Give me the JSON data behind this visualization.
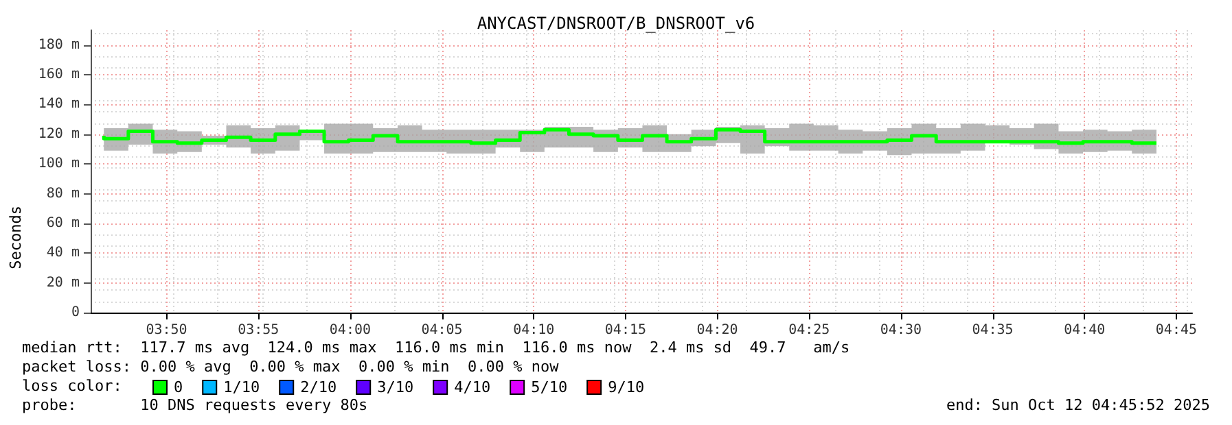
{
  "chart_data": {
    "type": "step",
    "title": "ANYCAST/DNSROOT/B_DNSROOT_v6",
    "ylabel": "Seconds",
    "legend_title": "loss color:",
    "legend": "bottom left",
    "grid": true,
    "x": [
      3.7764,
      3.7986,
      3.8208,
      3.8431,
      3.8653,
      3.8875,
      3.9097,
      3.932,
      3.9542,
      3.9764,
      3.9986,
      4.0208,
      4.0431,
      4.0653,
      4.0875,
      4.1097,
      4.132,
      4.1542,
      4.1764,
      4.1986,
      4.2208,
      4.2431,
      4.2653,
      4.2875,
      4.3097,
      4.332,
      4.3542,
      4.3764,
      4.3986,
      4.4208,
      4.4431,
      4.4653,
      4.4875,
      4.5097,
      4.532,
      4.5542,
      4.5764,
      4.5986,
      4.6208,
      4.6431,
      4.6653,
      4.6875,
      4.7097,
      4.732
    ],
    "xlim": [
      3.7644,
      4.7644
    ],
    "xticks": [
      {
        "value": 3.8333,
        "label": "03:50"
      },
      {
        "value": 3.9167,
        "label": "03:55"
      },
      {
        "value": 4,
        "label": "04:00"
      },
      {
        "value": 4.0833,
        "label": "04:05"
      },
      {
        "value": 4.1667,
        "label": "04:10"
      },
      {
        "value": 4.25,
        "label": "04:15"
      },
      {
        "value": 4.3333,
        "label": "04:20"
      },
      {
        "value": 4.4167,
        "label": "04:25"
      },
      {
        "value": 4.5,
        "label": "04:30"
      },
      {
        "value": 4.5833,
        "label": "04:35"
      },
      {
        "value": 4.6667,
        "label": "04:40"
      },
      {
        "value": 4.75,
        "label": "04:45"
      }
    ],
    "ylim": [
      0,
      190
    ],
    "yticks": [
      0,
      {
        "value": 20,
        "label": "20 m"
      },
      {
        "value": 40,
        "label": "40 m"
      },
      {
        "value": 60,
        "label": "60 m"
      },
      {
        "value": 80,
        "label": "80 m"
      },
      {
        "value": 100,
        "label": "100 m"
      },
      {
        "value": 120,
        "label": "120 m"
      },
      {
        "value": 140,
        "label": "140 m"
      },
      {
        "value": 160,
        "label": "160 m"
      },
      {
        "value": 180,
        "label": "180 m"
      }
    ],
    "series": [
      {
        "name": "0",
        "color": "#00ff00",
        "values": [
          119,
          117,
          122,
          115,
          114,
          116,
          118,
          116,
          120,
          122,
          115,
          116,
          119,
          115,
          115,
          115,
          114,
          116,
          121,
          123,
          120,
          119,
          116,
          119,
          115,
          117,
          123,
          122,
          115,
          115,
          115,
          115,
          115,
          116,
          119,
          115,
          115,
          115,
          115,
          115,
          114,
          115,
          115,
          114
        ],
        "lower": [
          110,
          109,
          113,
          107,
          108,
          113,
          111,
          107,
          109,
          116,
          107,
          107,
          108,
          108,
          108,
          107,
          107,
          111,
          108,
          111,
          111,
          108,
          111,
          108,
          108,
          112,
          114,
          107,
          112,
          109,
          109,
          107,
          109,
          106,
          107,
          107,
          109,
          114,
          113,
          110,
          107,
          108,
          109,
          107
        ],
        "upper": [
          127,
          124,
          127,
          123,
          122,
          119,
          126,
          124,
          126,
          123,
          127,
          127,
          124,
          126,
          123,
          123,
          123,
          123,
          123,
          125,
          125,
          123,
          124,
          126,
          120,
          123,
          125,
          126,
          124,
          127,
          126,
          123,
          122,
          124,
          127,
          124,
          127,
          126,
          124,
          127,
          122,
          123,
          122,
          123
        ]
      },
      {
        "name": "1/10",
        "color": "#00b8ff",
        "values": [
          null,
          null,
          null,
          null,
          null,
          null,
          null,
          null,
          null,
          null,
          null,
          null,
          null,
          null,
          null,
          null,
          null,
          null,
          null,
          null,
          null,
          null,
          null,
          null,
          null,
          null,
          null,
          null,
          null,
          null,
          null,
          null,
          null,
          null,
          null,
          null,
          null,
          null,
          null,
          null,
          null,
          null,
          null,
          null
        ]
      },
      {
        "name": "2/10",
        "color": "#0059ff",
        "values": [
          null,
          null,
          null,
          null,
          null,
          null,
          null,
          null,
          null,
          null,
          null,
          null,
          null,
          null,
          null,
          null,
          null,
          null,
          null,
          null,
          null,
          null,
          null,
          null,
          null,
          null,
          null,
          null,
          null,
          null,
          null,
          null,
          null,
          null,
          null,
          null,
          null,
          null,
          null,
          null,
          null,
          null,
          null,
          null
        ]
      },
      {
        "name": "3/10",
        "color": "#5e00ff",
        "values": [
          null,
          null,
          null,
          null,
          null,
          null,
          null,
          null,
          null,
          null,
          null,
          null,
          null,
          null,
          null,
          null,
          null,
          null,
          null,
          null,
          null,
          null,
          null,
          null,
          null,
          null,
          null,
          null,
          null,
          null,
          null,
          null,
          null,
          null,
          null,
          null,
          null,
          null,
          null,
          null,
          null,
          null,
          null,
          null
        ]
      },
      {
        "name": "4/10",
        "color": "#7e00ff",
        "values": [
          null,
          null,
          null,
          null,
          null,
          null,
          null,
          null,
          null,
          null,
          null,
          null,
          null,
          null,
          null,
          null,
          null,
          null,
          null,
          null,
          null,
          null,
          null,
          null,
          null,
          null,
          null,
          null,
          null,
          null,
          null,
          null,
          null,
          null,
          null,
          null,
          null,
          null,
          null,
          null,
          null,
          null,
          null,
          null
        ]
      },
      {
        "name": "5/10",
        "color": "#dd00ff",
        "values": [
          null,
          null,
          null,
          null,
          null,
          null,
          null,
          null,
          null,
          null,
          null,
          null,
          null,
          null,
          null,
          null,
          null,
          null,
          null,
          null,
          null,
          null,
          null,
          null,
          null,
          null,
          null,
          null,
          null,
          null,
          null,
          null,
          null,
          null,
          null,
          null,
          null,
          null,
          null,
          null,
          null,
          null,
          null,
          null
        ]
      },
      {
        "name": "9/10",
        "color": "#ff0000",
        "values": [
          null,
          null,
          null,
          null,
          null,
          null,
          null,
          null,
          null,
          null,
          null,
          null,
          null,
          null,
          null,
          null,
          null,
          null,
          null,
          null,
          null,
          null,
          null,
          null,
          null,
          null,
          null,
          null,
          null,
          null,
          null,
          null,
          null,
          null,
          null,
          null,
          null,
          null,
          null,
          null,
          null,
          null,
          null,
          null
        ]
      }
    ],
    "annotations": [
      "median rtt:  117.7 ms avg  124.0 ms max  116.0 ms min  116.0 ms now  2.4 ms sd  49.7   am/s",
      "packet loss: 0.00 % avg  0.00 % max  0.00 % min  0.00 % now",
      "probe:       10 DNS requests every 80s",
      "end: Sun Oct 12 04:45:52 2025"
    ]
  }
}
